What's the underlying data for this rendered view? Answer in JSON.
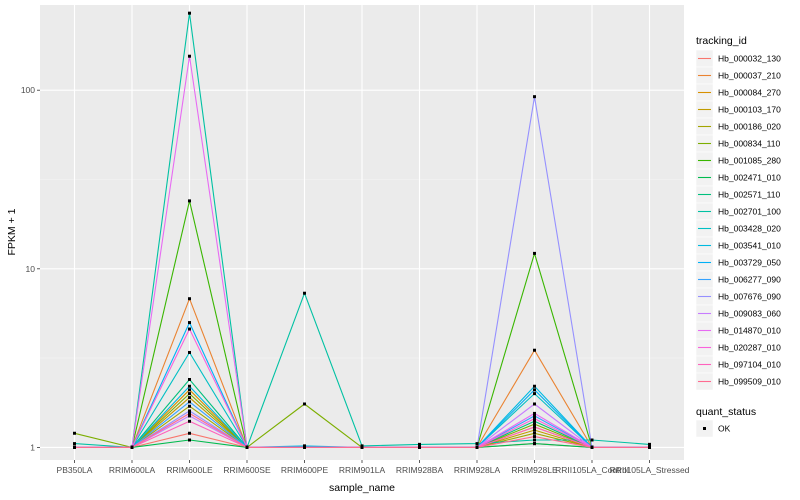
{
  "chart_data": {
    "type": "line",
    "xlabel": "sample_name",
    "ylabel": "FPKM + 1",
    "y_scale": "log10",
    "ylim": [
      0.85,
      300
    ],
    "y_ticks": [
      1,
      10,
      100
    ],
    "y_tick_labels": [
      "1",
      "10",
      "100"
    ],
    "grid": true,
    "legend_placement": "right",
    "categories": [
      "PB350LA",
      "RRIM600LA",
      "RRIM600LE",
      "RRIM600SE",
      "RRIM600PE",
      "RRIM901LA",
      "RRIM928BA",
      "RRIM928LA",
      "RRIM928LE",
      "RRII105LA_Control",
      "RRII105LA_Stressed"
    ],
    "legend": {
      "title": "tracking_id",
      "entries": [
        "Hb_000032_130",
        "Hb_000037_210",
        "Hb_000084_270",
        "Hb_000103_170",
        "Hb_000186_020",
        "Hb_000834_110",
        "Hb_001085_280",
        "Hb_002471_010",
        "Hb_002571_110",
        "Hb_002701_100",
        "Hb_003428_020",
        "Hb_003541_010",
        "Hb_003729_050",
        "Hb_006277_090",
        "Hb_007676_090",
        "Hb_009083_060",
        "Hb_014870_010",
        "Hb_020287_010",
        "Hb_097104_010",
        "Hb_099509_010"
      ]
    },
    "point_legend": {
      "title": "quant_status",
      "entries": [
        "OK"
      ]
    },
    "series": [
      {
        "name": "Hb_000032_130",
        "color": "#F8766D",
        "values": [
          1.0,
          1.0,
          1.2,
          1.0,
          1.0,
          1.0,
          1.0,
          1.0,
          1.05,
          1.0,
          1.0
        ]
      },
      {
        "name": "Hb_000037_210",
        "color": "#EA8331",
        "values": [
          1.0,
          1.0,
          6.8,
          1.0,
          1.0,
          1.0,
          1.0,
          1.0,
          3.5,
          1.0,
          1.0
        ]
      },
      {
        "name": "Hb_000084_270",
        "color": "#D89000",
        "values": [
          1.0,
          1.0,
          2.1,
          1.0,
          1.0,
          1.0,
          1.0,
          1.0,
          1.3,
          1.0,
          1.0
        ]
      },
      {
        "name": "Hb_000103_170",
        "color": "#C09B00",
        "values": [
          1.0,
          1.0,
          1.9,
          1.0,
          1.0,
          1.0,
          1.0,
          1.0,
          1.25,
          1.0,
          1.0
        ]
      },
      {
        "name": "Hb_000186_020",
        "color": "#A3A500",
        "values": [
          1.0,
          1.0,
          1.7,
          1.0,
          1.0,
          1.0,
          1.0,
          1.0,
          1.2,
          1.0,
          1.0
        ]
      },
      {
        "name": "Hb_000834_110",
        "color": "#7CAE00",
        "values": [
          1.2,
          1.0,
          2.0,
          1.0,
          1.75,
          1.0,
          1.0,
          1.0,
          1.35,
          1.0,
          1.0
        ]
      },
      {
        "name": "Hb_001085_280",
        "color": "#39B600",
        "values": [
          1.0,
          1.0,
          24,
          1.0,
          1.0,
          1.0,
          1.0,
          1.0,
          12.2,
          1.0,
          1.0
        ]
      },
      {
        "name": "Hb_002471_010",
        "color": "#00BB4E",
        "values": [
          1.0,
          1.0,
          1.1,
          1.0,
          1.0,
          1.0,
          1.0,
          1.0,
          1.05,
          1.0,
          1.0
        ]
      },
      {
        "name": "Hb_002571_110",
        "color": "#00BF7D",
        "values": [
          1.0,
          1.0,
          2.4,
          1.0,
          1.0,
          1.0,
          1.0,
          1.0,
          1.4,
          1.0,
          1.0
        ]
      },
      {
        "name": "Hb_002701_100",
        "color": "#00C1A3",
        "values": [
          1.05,
          1.0,
          270,
          1.0,
          7.3,
          1.02,
          1.04,
          1.05,
          1.1,
          1.1,
          1.04
        ]
      },
      {
        "name": "Hb_003428_020",
        "color": "#00BFC4",
        "values": [
          1.0,
          1.0,
          3.4,
          1.0,
          1.0,
          1.0,
          1.0,
          1.0,
          2.0,
          1.0,
          1.0
        ]
      },
      {
        "name": "Hb_003541_010",
        "color": "#00BAE0",
        "values": [
          1.0,
          1.0,
          2.2,
          1.0,
          1.02,
          1.0,
          1.0,
          1.0,
          2.2,
          1.0,
          1.0
        ]
      },
      {
        "name": "Hb_003729_050",
        "color": "#00B0F6",
        "values": [
          1.0,
          1.0,
          5.0,
          1.0,
          1.0,
          1.0,
          1.0,
          1.0,
          2.1,
          1.0,
          1.0
        ]
      },
      {
        "name": "Hb_006277_090",
        "color": "#35A2FF",
        "values": [
          1.0,
          1.0,
          1.8,
          1.0,
          1.0,
          1.0,
          1.0,
          1.0,
          1.5,
          1.0,
          1.0
        ]
      },
      {
        "name": "Hb_007676_090",
        "color": "#9590FF",
        "values": [
          1.0,
          1.0,
          1.6,
          1.0,
          1.0,
          1.0,
          1.0,
          1.0,
          92,
          1.0,
          1.0
        ]
      },
      {
        "name": "Hb_009083_060",
        "color": "#C77CFF",
        "values": [
          1.0,
          1.0,
          1.5,
          1.0,
          1.0,
          1.0,
          1.0,
          1.0,
          1.75,
          1.0,
          1.0
        ]
      },
      {
        "name": "Hb_014870_010",
        "color": "#E76BF3",
        "values": [
          1.0,
          1.0,
          155,
          1.0,
          1.0,
          1.0,
          1.0,
          1.0,
          1.55,
          1.0,
          1.0
        ]
      },
      {
        "name": "Hb_020287_010",
        "color": "#FA62DB",
        "values": [
          1.0,
          1.0,
          4.6,
          1.0,
          1.0,
          1.0,
          1.0,
          1.0,
          1.45,
          1.0,
          1.0
        ]
      },
      {
        "name": "Hb_097104_010",
        "color": "#FF62BC",
        "values": [
          1.0,
          1.0,
          1.4,
          1.0,
          1.0,
          1.0,
          1.0,
          1.0,
          1.3,
          1.0,
          1.0
        ]
      },
      {
        "name": "Hb_099509_010",
        "color": "#FF6C91",
        "values": [
          1.0,
          1.0,
          1.55,
          1.0,
          1.0,
          1.0,
          1.0,
          1.0,
          1.15,
          1.0,
          1.0
        ]
      }
    ]
  }
}
